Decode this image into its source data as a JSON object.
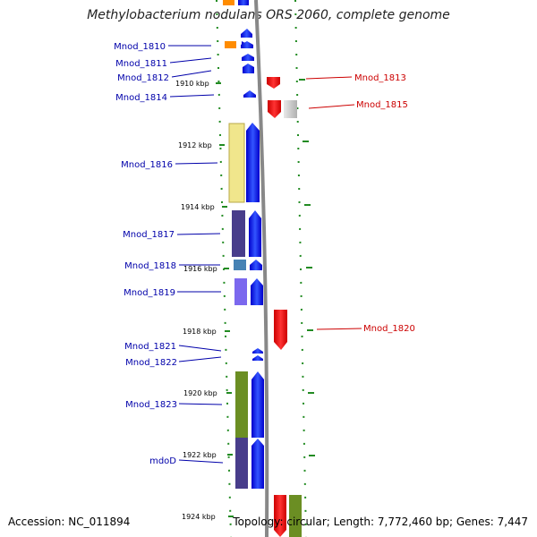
{
  "title": "Methylobacterium nodulans ORS 2060, complete genome",
  "accession": "Accession: NC_011894",
  "topology": "Topology: circular; Length: 7,772,460 bp; Genes: 7,447",
  "kbp_ticks": [
    "1910 kbp",
    "1912 kbp",
    "1914 kbp",
    "1916 kbp",
    "1918 kbp",
    "1920 kbp",
    "1922 kbp",
    "1924 kbp"
  ],
  "left_genes": [
    {
      "label": "Mnod_1810",
      "color": "#ff8c00"
    },
    {
      "label": "Mnod_1811",
      "color": "#0000ff"
    },
    {
      "label": "Mnod_1812",
      "color": "#0000ff"
    },
    {
      "label": "Mnod_1814",
      "color": "#0000ff"
    },
    {
      "label": "Mnod_1816",
      "color": "#f0e68c"
    },
    {
      "label": "Mnod_1817",
      "color": "#483d8b"
    },
    {
      "label": "Mnod_1818",
      "color": "#4682b4"
    },
    {
      "label": "Mnod_1819",
      "color": "#7b68ee"
    },
    {
      "label": "Mnod_1821",
      "color": "#0000ff"
    },
    {
      "label": "Mnod_1822",
      "color": "#0000ff"
    },
    {
      "label": "Mnod_1823",
      "color": "#6b8e23"
    },
    {
      "label": "mdoD",
      "color": "#483d8b"
    }
  ],
  "right_genes": [
    {
      "label": "Mnod_1813",
      "color": "#ff0000"
    },
    {
      "label": "Mnod_1815",
      "color": "#ff0000"
    },
    {
      "label": "Mnod_1820",
      "color": "#ff0000"
    }
  ],
  "colors": {
    "forward_strand": "#0000ff",
    "reverse_strand": "#ff0000",
    "tick": "#228b22",
    "backbone": "#888888",
    "left_label": "#0000aa",
    "right_label": "#cc0000",
    "other_gene": "#c0c0c0"
  }
}
